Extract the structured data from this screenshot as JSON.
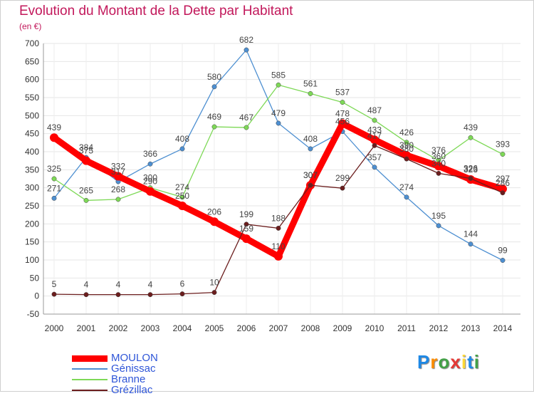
{
  "chart_data": {
    "type": "line",
    "title": "Evolution du Montant de la Dette par Habitant",
    "subtitle": "(en €)",
    "x": [
      "2000",
      "2001",
      "2002",
      "2003",
      "2004",
      "2005",
      "2006",
      "2007",
      "2008",
      "2009",
      "2010",
      "2011",
      "2012",
      "2013",
      "2014"
    ],
    "ylim": [
      -50,
      700
    ],
    "yticks": [
      -50,
      0,
      50,
      100,
      150,
      200,
      250,
      300,
      350,
      400,
      450,
      500,
      550,
      600,
      650,
      700
    ],
    "grid": true,
    "legend_position": "bottom-left",
    "series": [
      {
        "name": "MOULON",
        "color": "#ff0000",
        "values": [
          439,
          375,
          332,
          290,
          250,
          206,
          159,
          110,
          307,
          478,
          433,
          390,
          360,
          323,
          297
        ]
      },
      {
        "name": "Génissac",
        "color": "#4d8fd1",
        "values": [
          271,
          384,
          317,
          366,
          408,
          580,
          682,
          479,
          408,
          456,
          357,
          274,
          195,
          144,
          99
        ]
      },
      {
        "name": "Branne",
        "color": "#7ed957",
        "values": [
          325,
          265,
          268,
          300,
          274,
          469,
          467,
          585,
          561,
          537,
          487,
          426,
          376,
          439,
          393
        ]
      },
      {
        "name": "Grézillac",
        "color": "#6b1d1d",
        "values": [
          5,
          4,
          4,
          4,
          6,
          10,
          199,
          188,
          307,
          299,
          417,
          380,
          340,
          326,
          286
        ]
      }
    ]
  },
  "logo": {
    "letters": [
      "P",
      "r",
      "o",
      "x",
      "i",
      "t",
      "i"
    ],
    "colors": [
      "#1e88e5",
      "#fb8c00",
      "#43a047",
      "#e53935",
      "#fdd835",
      "#1e88e5",
      "#43a047"
    ]
  }
}
